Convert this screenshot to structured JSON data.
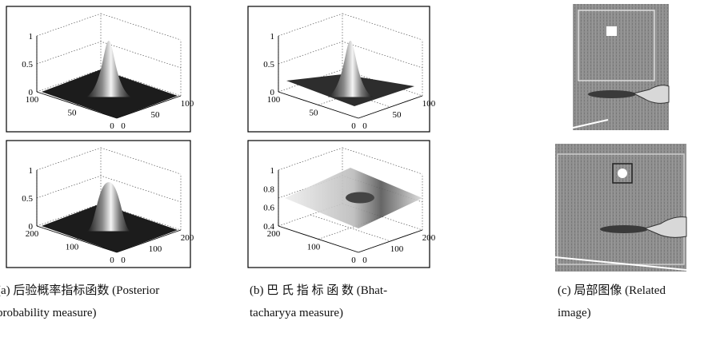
{
  "panels": [
    {
      "plots": [
        {
          "z_ticks": [
            "1",
            "0.5",
            "0"
          ],
          "y_ticks": [
            "100",
            "50",
            "0"
          ],
          "x_ticks": [
            "0",
            "50",
            "100"
          ]
        },
        {
          "z_ticks": [
            "1",
            "0.5",
            "0"
          ],
          "y_ticks": [
            "200",
            "100",
            "0"
          ],
          "x_ticks": [
            "0",
            "100",
            "200"
          ]
        }
      ],
      "caption": [
        "(a) 后验概率指标函数 (Posterior",
        "probability measure)"
      ]
    },
    {
      "plots": [
        {
          "z_ticks": [
            "1",
            "0.5",
            "0"
          ],
          "y_ticks": [
            "100",
            "50",
            "0"
          ],
          "x_ticks": [
            "0",
            "50",
            "100"
          ]
        },
        {
          "z_ticks": [
            "1",
            "0.8",
            "0.6",
            "0.4"
          ],
          "y_ticks": [
            "200",
            "100",
            "0"
          ],
          "x_ticks": [
            "0",
            "100",
            "200"
          ]
        }
      ],
      "caption": [
        "(b) 巴 氏 指 标 函 数 (Bhat-",
        "tacharyya measure)"
      ]
    },
    {
      "caption": [
        "(c) 局部图像 (Related",
        "image)"
      ]
    }
  ]
}
